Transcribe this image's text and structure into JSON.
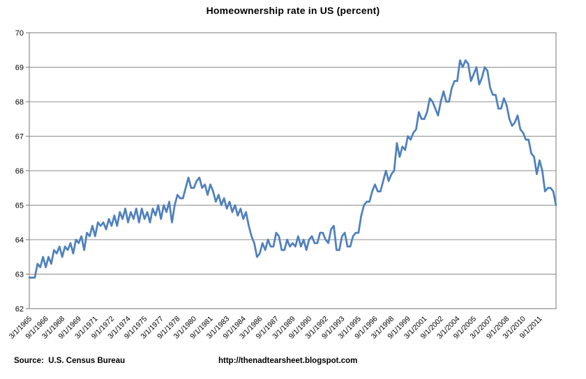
{
  "title": "Homeownership rate in US (percent)",
  "footer": {
    "source_label": "Source:  U.S. Census Bureau",
    "url_label": "http://thenadtearsheet.blogspot.com"
  },
  "chart_data": {
    "type": "line",
    "title": "Homeownership rate in US (percent)",
    "xlabel": "",
    "ylabel": "",
    "ylim": [
      62,
      70
    ],
    "y_ticks": [
      62,
      63,
      64,
      65,
      66,
      67,
      68,
      69,
      70
    ],
    "grid": "horizontal-major",
    "legend": "none",
    "x_start": "3/1/1965",
    "x_frequency": "quarterly",
    "x_tick_every_n_points": 6,
    "x_tick_labels": [
      "3/1/1965",
      "9/1/1966",
      "3/1/1968",
      "9/1/1969",
      "3/1/1971",
      "9/1/1972",
      "3/1/1974",
      "9/1/1975",
      "3/1/1977",
      "9/1/1978",
      "3/1/1980",
      "9/1/1981",
      "3/1/1983",
      "9/1/1984",
      "3/1/1986",
      "9/1/1987",
      "3/1/1989",
      "9/1/1990",
      "3/1/1992",
      "9/1/1993",
      "3/1/1995",
      "9/1/1996",
      "3/1/1998",
      "9/1/1999",
      "3/1/2001",
      "9/1/2002",
      "3/1/2004",
      "9/1/2005",
      "3/1/2007",
      "9/1/2008",
      "3/1/2010",
      "9/1/2011"
    ],
    "line_color": "#4F81BD",
    "line_width": 2.75,
    "gridline_color": "#8c8c8c",
    "plot_border_color": "#8c8c8c",
    "axis_text_color": "#000000",
    "series": [
      {
        "name": "Homeownership rate (percent)",
        "values": [
          62.9,
          62.9,
          62.9,
          63.3,
          63.2,
          63.5,
          63.2,
          63.5,
          63.3,
          63.7,
          63.6,
          63.8,
          63.5,
          63.8,
          63.7,
          63.9,
          63.6,
          64.0,
          63.9,
          64.1,
          63.7,
          64.2,
          64.1,
          64.4,
          64.1,
          64.5,
          64.4,
          64.5,
          64.3,
          64.6,
          64.4,
          64.7,
          64.4,
          64.8,
          64.6,
          64.9,
          64.5,
          64.8,
          64.6,
          64.9,
          64.5,
          64.9,
          64.6,
          64.8,
          64.5,
          64.9,
          64.7,
          65.0,
          64.6,
          65.0,
          64.8,
          65.1,
          64.5,
          65.0,
          65.3,
          65.2,
          65.2,
          65.5,
          65.8,
          65.5,
          65.5,
          65.7,
          65.8,
          65.5,
          65.6,
          65.3,
          65.6,
          65.4,
          65.1,
          65.3,
          65.0,
          65.2,
          64.9,
          65.1,
          64.8,
          65.0,
          64.7,
          64.9,
          64.6,
          64.8,
          64.4,
          64.1,
          63.9,
          63.5,
          63.6,
          63.9,
          63.7,
          64.0,
          63.8,
          63.8,
          64.2,
          64.1,
          63.7,
          63.7,
          64.0,
          63.8,
          63.9,
          63.8,
          64.1,
          63.8,
          64.0,
          63.7,
          64.0,
          64.1,
          63.9,
          63.9,
          64.2,
          64.2,
          64.0,
          63.9,
          64.3,
          64.4,
          63.7,
          63.7,
          64.1,
          64.2,
          63.8,
          63.8,
          64.1,
          64.2,
          64.2,
          64.7,
          65.0,
          65.1,
          65.1,
          65.4,
          65.6,
          65.4,
          65.4,
          65.7,
          66.0,
          65.7,
          65.9,
          66.0,
          66.8,
          66.4,
          66.7,
          66.6,
          67.0,
          66.9,
          67.1,
          67.2,
          67.7,
          67.5,
          67.5,
          67.7,
          68.1,
          68.0,
          67.8,
          67.6,
          68.0,
          68.3,
          68.0,
          68.0,
          68.4,
          68.6,
          68.6,
          69.2,
          69.0,
          69.2,
          69.1,
          68.6,
          68.8,
          69.0,
          68.5,
          68.7,
          69.0,
          68.9,
          68.4,
          68.2,
          68.2,
          67.8,
          67.8,
          68.1,
          67.9,
          67.5,
          67.3,
          67.4,
          67.6,
          67.2,
          67.1,
          66.9,
          66.9,
          66.5,
          66.4,
          65.9,
          66.3,
          66.0,
          65.4,
          65.5,
          65.5,
          65.4,
          65.0
        ]
      }
    ]
  }
}
